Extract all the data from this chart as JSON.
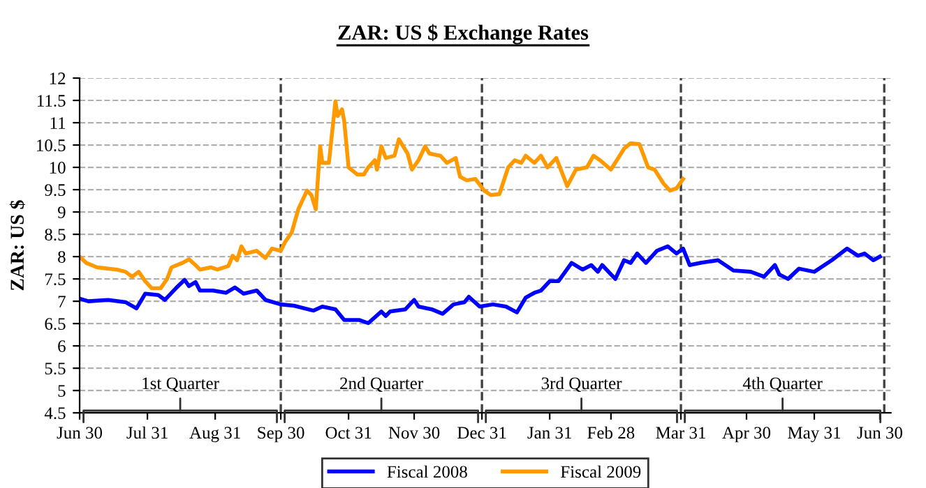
{
  "chart_data": {
    "type": "line",
    "title": "ZAR: US $ Exchange Rates",
    "ylabel": "ZAR: US $",
    "xlim": [
      "2007-06-30",
      "2008-07-05"
    ],
    "xticks": [
      {
        "value": "2007-06-30",
        "label": "Jun 30"
      },
      {
        "value": "2007-07-31",
        "label": "Jul 31"
      },
      {
        "value": "2007-08-31",
        "label": "Aug 31"
      },
      {
        "value": "2007-09-30",
        "label": "Sep 30"
      },
      {
        "value": "2007-10-31",
        "label": "Oct 31"
      },
      {
        "value": "2007-11-30",
        "label": "Nov 30"
      },
      {
        "value": "2007-12-31",
        "label": "Dec 31"
      },
      {
        "value": "2008-01-31",
        "label": "Jan 31"
      },
      {
        "value": "2008-02-28",
        "label": "Feb 28"
      },
      {
        "value": "2008-03-31",
        "label": "Mar 31"
      },
      {
        "value": "2008-04-30",
        "label": "Apr 30"
      },
      {
        "value": "2008-05-31",
        "label": "May 31"
      },
      {
        "value": "2008-06-30",
        "label": "Jun 30"
      }
    ],
    "ylim": [
      4.5,
      12
    ],
    "yticks": [
      4.5,
      5,
      5.5,
      6,
      6.5,
      7,
      7.5,
      8,
      8.5,
      9,
      9.5,
      10,
      10.5,
      11,
      11.5,
      12
    ],
    "grid": "y",
    "legend": "bottom",
    "marker": "none",
    "line_style": "solid",
    "series": [
      {
        "name": "Fiscal 2008",
        "color": "#0000ff",
        "x": [
          "2007-06-30",
          "2007-07-04",
          "2007-07-13",
          "2007-07-21",
          "2007-07-26",
          "2007-07-30",
          "2007-08-05",
          "2007-08-08",
          "2007-08-13",
          "2007-08-17",
          "2007-08-19",
          "2007-08-22",
          "2007-08-24",
          "2007-08-30",
          "2007-09-05",
          "2007-09-09",
          "2007-09-13",
          "2007-09-19",
          "2007-09-23",
          "2007-09-30",
          "2007-10-06",
          "2007-10-15",
          "2007-10-19",
          "2007-10-25",
          "2007-10-29",
          "2007-11-05",
          "2007-11-09",
          "2007-11-15",
          "2007-11-17",
          "2007-11-19",
          "2007-11-26",
          "2007-11-30",
          "2007-12-02",
          "2007-12-08",
          "2007-12-13",
          "2007-12-18",
          "2007-12-23",
          "2007-12-25",
          "2007-12-30",
          "2008-01-05",
          "2008-01-11",
          "2008-01-16",
          "2008-01-20",
          "2008-01-24",
          "2008-01-27",
          "2008-01-31",
          "2008-02-04",
          "2008-02-10",
          "2008-02-15",
          "2008-02-19",
          "2008-02-22",
          "2008-02-24",
          "2008-03-01",
          "2008-03-05",
          "2008-03-08",
          "2008-03-11",
          "2008-03-15",
          "2008-03-20",
          "2008-03-25",
          "2008-03-29",
          "2008-04-01",
          "2008-04-04",
          "2008-04-09",
          "2008-04-17",
          "2008-04-24",
          "2008-05-02",
          "2008-05-08",
          "2008-05-13",
          "2008-05-15",
          "2008-05-19",
          "2008-05-24",
          "2008-05-31",
          "2008-06-08",
          "2008-06-15",
          "2008-06-20",
          "2008-06-23",
          "2008-06-27",
          "2008-06-30"
        ],
        "values": [
          7.06,
          7.0,
          7.03,
          6.98,
          6.84,
          7.17,
          7.14,
          7.03,
          7.29,
          7.48,
          7.34,
          7.43,
          7.24,
          7.24,
          7.19,
          7.31,
          7.17,
          7.24,
          7.03,
          6.93,
          6.9,
          6.79,
          6.88,
          6.82,
          6.58,
          6.58,
          6.51,
          6.77,
          6.67,
          6.77,
          6.82,
          7.03,
          6.88,
          6.82,
          6.72,
          6.93,
          6.98,
          7.1,
          6.88,
          6.93,
          6.88,
          6.75,
          7.08,
          7.19,
          7.24,
          7.45,
          7.45,
          7.86,
          7.71,
          7.81,
          7.66,
          7.81,
          7.5,
          7.92,
          7.86,
          8.07,
          7.86,
          8.13,
          8.23,
          8.07,
          8.18,
          7.81,
          7.86,
          7.92,
          7.69,
          7.66,
          7.55,
          7.81,
          7.6,
          7.5,
          7.73,
          7.66,
          7.92,
          8.18,
          8.02,
          8.07,
          7.92,
          8.0
        ]
      },
      {
        "name": "Fiscal 2009",
        "color": "#ff9900",
        "x": [
          "2007-06-30",
          "2007-07-03",
          "2007-07-08",
          "2007-07-17",
          "2007-07-21",
          "2007-07-24",
          "2007-07-27",
          "2007-07-30",
          "2007-08-02",
          "2007-08-06",
          "2007-08-09",
          "2007-08-11",
          "2007-08-16",
          "2007-08-19",
          "2007-08-22",
          "2007-08-24",
          "2007-08-29",
          "2007-09-01",
          "2007-09-06",
          "2007-09-08",
          "2007-09-10",
          "2007-09-12",
          "2007-09-14",
          "2007-09-19",
          "2007-09-23",
          "2007-09-26",
          "2007-09-30",
          "2007-10-02",
          "2007-10-05",
          "2007-10-08",
          "2007-10-12",
          "2007-10-14",
          "2007-10-16",
          "2007-10-18",
          "2007-10-19",
          "2007-10-22",
          "2007-10-25",
          "2007-10-26",
          "2007-10-28",
          "2007-10-29",
          "2007-10-31",
          "2007-11-04",
          "2007-11-07",
          "2007-11-09",
          "2007-11-12",
          "2007-11-13",
          "2007-11-15",
          "2007-11-17",
          "2007-11-21",
          "2007-11-23",
          "2007-11-27",
          "2007-11-29",
          "2007-12-02",
          "2007-12-05",
          "2007-12-07",
          "2007-12-12",
          "2007-12-15",
          "2007-12-19",
          "2007-12-21",
          "2007-12-24",
          "2007-12-28",
          "2008-01-01",
          "2008-01-04",
          "2008-01-08",
          "2008-01-12",
          "2008-01-15",
          "2008-01-18",
          "2008-01-20",
          "2008-01-24",
          "2008-01-27",
          "2008-01-30",
          "2008-02-03",
          "2008-02-08",
          "2008-02-12",
          "2008-02-17",
          "2008-02-20",
          "2008-02-23",
          "2008-02-28",
          "2008-03-05",
          "2008-03-08",
          "2008-03-12",
          "2008-03-16",
          "2008-03-19",
          "2008-03-23",
          "2008-03-26",
          "2008-03-29",
          "2008-04-01"
        ],
        "values": [
          8.0,
          7.86,
          7.76,
          7.71,
          7.66,
          7.55,
          7.66,
          7.45,
          7.29,
          7.29,
          7.5,
          7.76,
          7.86,
          7.94,
          7.81,
          7.71,
          7.76,
          7.71,
          7.79,
          8.02,
          7.92,
          8.23,
          8.07,
          8.13,
          7.97,
          8.18,
          8.13,
          8.33,
          8.54,
          9.06,
          9.48,
          9.38,
          9.06,
          10.47,
          10.1,
          10.1,
          11.48,
          11.15,
          11.3,
          11.04,
          10.0,
          9.84,
          9.84,
          10.0,
          10.16,
          9.95,
          10.47,
          10.21,
          10.26,
          10.63,
          10.31,
          9.95,
          10.16,
          10.47,
          10.31,
          10.26,
          10.1,
          10.21,
          9.79,
          9.71,
          9.74,
          9.48,
          9.38,
          9.4,
          10.0,
          10.16,
          10.1,
          10.26,
          10.1,
          10.26,
          10.0,
          10.21,
          9.58,
          9.95,
          10.0,
          10.26,
          10.16,
          9.95,
          10.42,
          10.54,
          10.52,
          10.0,
          9.95,
          9.64,
          9.48,
          9.53,
          9.74
        ]
      }
    ],
    "ref_lines": [
      {
        "axis": "x",
        "value": "2007-09-30",
        "color": "#404040",
        "line_style": "dashed"
      },
      {
        "axis": "x",
        "value": "2007-12-31",
        "color": "#404040",
        "line_style": "dashed"
      },
      {
        "axis": "x",
        "value": "2008-03-31",
        "color": "#404040",
        "line_style": "dashed"
      },
      {
        "axis": "x",
        "value": "2008-07-02",
        "color": "#404040",
        "line_style": "dashed"
      }
    ],
    "annotations": [
      "1st Quarter",
      "2nd Quarter",
      "3rd Quarter",
      "4th Quarter"
    ]
  }
}
